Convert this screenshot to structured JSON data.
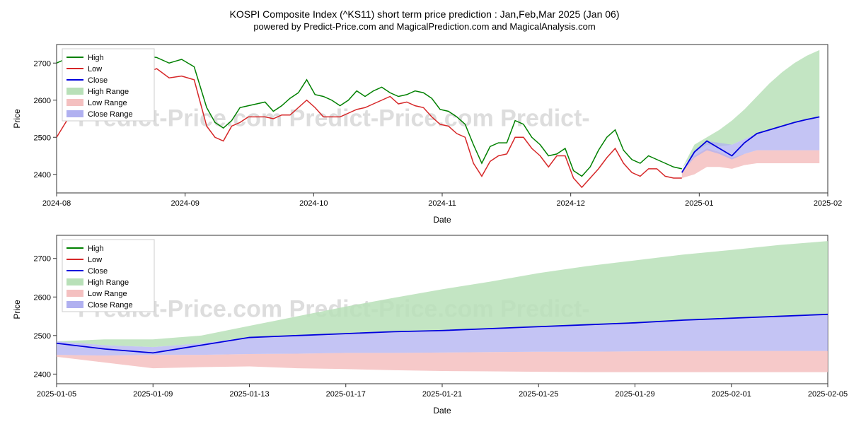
{
  "title": "KOSPI Composite Index (^KS11) short term price prediction : Jan,Feb,Mar 2025 (Jan 06)",
  "subtitle": "powered by Predict-Price.com and MagicalPrediction.com and MagicalAnalysis.com",
  "watermark_text": "Predict-Price.com   Predict-Price.com   Predict-",
  "watermark_color": "#dddddd",
  "legend": {
    "items": [
      {
        "label": "High",
        "type": "line",
        "color": "#008000"
      },
      {
        "label": "Low",
        "type": "line",
        "color": "#d62728"
      },
      {
        "label": "Close",
        "type": "line",
        "color": "#0000dd"
      },
      {
        "label": "High Range",
        "type": "area",
        "color": "#b8e0b8"
      },
      {
        "label": "Low Range",
        "type": "area",
        "color": "#f4c0c0"
      },
      {
        "label": "Close Range",
        "type": "area",
        "color": "#b0b0f0"
      }
    ]
  },
  "chart1": {
    "ylabel": "Price",
    "xlabel": "Date",
    "ylim": [
      2350,
      2750
    ],
    "ytick_step": 100,
    "yticks": [
      2400,
      2500,
      2600,
      2700
    ],
    "xticks": [
      "2024-08",
      "2024-09",
      "2024-10",
      "2024-11",
      "2024-12",
      "2025-01",
      "2025-02"
    ],
    "xlim": [
      0,
      185
    ],
    "background": "#ffffff",
    "grid_color": "#e0e0e0",
    "high_color": "#008000",
    "low_color": "#d62728",
    "close_color": "#0000dd",
    "high_range_color": "#b8e0b8",
    "low_range_color": "#f4c0c0",
    "close_range_color": "#b0b0f0",
    "high_series": [
      [
        0,
        2700
      ],
      [
        3,
        2715
      ],
      [
        6,
        2705
      ],
      [
        9,
        2700
      ],
      [
        12,
        2690
      ],
      [
        15,
        2695
      ],
      [
        18,
        2695
      ],
      [
        21,
        2720
      ],
      [
        24,
        2715
      ],
      [
        27,
        2700
      ],
      [
        30,
        2710
      ],
      [
        33,
        2690
      ],
      [
        36,
        2580
      ],
      [
        38,
        2540
      ],
      [
        40,
        2525
      ],
      [
        42,
        2545
      ],
      [
        44,
        2580
      ],
      [
        46,
        2585
      ],
      [
        48,
        2590
      ],
      [
        50,
        2595
      ],
      [
        52,
        2570
      ],
      [
        54,
        2585
      ],
      [
        56,
        2605
      ],
      [
        58,
        2620
      ],
      [
        60,
        2655
      ],
      [
        62,
        2615
      ],
      [
        64,
        2610
      ],
      [
        66,
        2600
      ],
      [
        68,
        2585
      ],
      [
        70,
        2600
      ],
      [
        72,
        2625
      ],
      [
        74,
        2610
      ],
      [
        76,
        2625
      ],
      [
        78,
        2635
      ],
      [
        80,
        2620
      ],
      [
        82,
        2610
      ],
      [
        84,
        2615
      ],
      [
        86,
        2625
      ],
      [
        88,
        2620
      ],
      [
        90,
        2605
      ],
      [
        92,
        2575
      ],
      [
        94,
        2570
      ],
      [
        96,
        2555
      ],
      [
        98,
        2535
      ],
      [
        100,
        2480
      ],
      [
        102,
        2430
      ],
      [
        104,
        2475
      ],
      [
        106,
        2485
      ],
      [
        108,
        2485
      ],
      [
        110,
        2545
      ],
      [
        112,
        2535
      ],
      [
        114,
        2500
      ],
      [
        116,
        2480
      ],
      [
        118,
        2450
      ],
      [
        120,
        2455
      ],
      [
        122,
        2470
      ],
      [
        124,
        2410
      ],
      [
        126,
        2395
      ],
      [
        128,
        2420
      ],
      [
        130,
        2465
      ],
      [
        132,
        2500
      ],
      [
        134,
        2520
      ],
      [
        136,
        2465
      ],
      [
        138,
        2440
      ],
      [
        140,
        2430
      ],
      [
        142,
        2450
      ],
      [
        144,
        2440
      ],
      [
        146,
        2430
      ],
      [
        148,
        2420
      ],
      [
        150,
        2415
      ]
    ],
    "low_series": [
      [
        0,
        2500
      ],
      [
        3,
        2555
      ],
      [
        6,
        2620
      ],
      [
        9,
        2640
      ],
      [
        12,
        2665
      ],
      [
        15,
        2670
      ],
      [
        18,
        2680
      ],
      [
        21,
        2670
      ],
      [
        24,
        2685
      ],
      [
        27,
        2660
      ],
      [
        30,
        2665
      ],
      [
        33,
        2655
      ],
      [
        36,
        2530
      ],
      [
        38,
        2500
      ],
      [
        40,
        2490
      ],
      [
        42,
        2530
      ],
      [
        44,
        2540
      ],
      [
        46,
        2555
      ],
      [
        48,
        2555
      ],
      [
        50,
        2555
      ],
      [
        52,
        2550
      ],
      [
        54,
        2560
      ],
      [
        56,
        2560
      ],
      [
        58,
        2580
      ],
      [
        60,
        2600
      ],
      [
        62,
        2580
      ],
      [
        64,
        2555
      ],
      [
        66,
        2555
      ],
      [
        68,
        2555
      ],
      [
        70,
        2565
      ],
      [
        72,
        2575
      ],
      [
        74,
        2580
      ],
      [
        76,
        2590
      ],
      [
        78,
        2600
      ],
      [
        80,
        2610
      ],
      [
        82,
        2590
      ],
      [
        84,
        2595
      ],
      [
        86,
        2585
      ],
      [
        88,
        2580
      ],
      [
        90,
        2555
      ],
      [
        92,
        2535
      ],
      [
        94,
        2530
      ],
      [
        96,
        2510
      ],
      [
        98,
        2500
      ],
      [
        100,
        2430
      ],
      [
        102,
        2395
      ],
      [
        104,
        2435
      ],
      [
        106,
        2450
      ],
      [
        108,
        2455
      ],
      [
        110,
        2500
      ],
      [
        112,
        2500
      ],
      [
        114,
        2470
      ],
      [
        116,
        2450
      ],
      [
        118,
        2420
      ],
      [
        120,
        2450
      ],
      [
        122,
        2450
      ],
      [
        124,
        2390
      ],
      [
        126,
        2365
      ],
      [
        128,
        2390
      ],
      [
        130,
        2415
      ],
      [
        132,
        2445
      ],
      [
        134,
        2470
      ],
      [
        136,
        2430
      ],
      [
        138,
        2405
      ],
      [
        140,
        2395
      ],
      [
        142,
        2415
      ],
      [
        144,
        2415
      ],
      [
        146,
        2395
      ],
      [
        148,
        2390
      ],
      [
        150,
        2390
      ]
    ],
    "close_series": [
      [
        150,
        2405
      ],
      [
        153,
        2460
      ],
      [
        156,
        2490
      ],
      [
        159,
        2470
      ],
      [
        162,
        2450
      ],
      [
        165,
        2485
      ],
      [
        168,
        2510
      ],
      [
        171,
        2520
      ],
      [
        174,
        2530
      ],
      [
        177,
        2540
      ],
      [
        180,
        2548
      ],
      [
        183,
        2555
      ]
    ],
    "high_range": [
      [
        150,
        2415,
        2415
      ],
      [
        153,
        2460,
        2480
      ],
      [
        156,
        2480,
        2500
      ],
      [
        159,
        2475,
        2520
      ],
      [
        162,
        2480,
        2545
      ],
      [
        165,
        2495,
        2575
      ],
      [
        168,
        2510,
        2610
      ],
      [
        171,
        2520,
        2645
      ],
      [
        174,
        2530,
        2675
      ],
      [
        177,
        2540,
        2700
      ],
      [
        180,
        2548,
        2720
      ],
      [
        183,
        2555,
        2735
      ]
    ],
    "close_range": [
      [
        150,
        2405,
        2405
      ],
      [
        153,
        2445,
        2465
      ],
      [
        156,
        2465,
        2490
      ],
      [
        159,
        2455,
        2485
      ],
      [
        162,
        2440,
        2480
      ],
      [
        165,
        2455,
        2495
      ],
      [
        168,
        2465,
        2510
      ],
      [
        171,
        2465,
        2520
      ],
      [
        174,
        2465,
        2530
      ],
      [
        177,
        2465,
        2540
      ],
      [
        180,
        2465,
        2548
      ],
      [
        183,
        2465,
        2555
      ]
    ],
    "low_range": [
      [
        150,
        2390,
        2405
      ],
      [
        153,
        2400,
        2450
      ],
      [
        156,
        2420,
        2470
      ],
      [
        159,
        2420,
        2460
      ],
      [
        162,
        2415,
        2445
      ],
      [
        165,
        2425,
        2455
      ],
      [
        168,
        2430,
        2465
      ],
      [
        171,
        2430,
        2465
      ],
      [
        174,
        2430,
        2465
      ],
      [
        177,
        2430,
        2465
      ],
      [
        180,
        2430,
        2465
      ],
      [
        183,
        2430,
        2465
      ]
    ]
  },
  "chart2": {
    "ylabel": "Price",
    "xlabel": "Date",
    "ylim": [
      2375,
      2760
    ],
    "yticks": [
      2400,
      2500,
      2600,
      2700
    ],
    "xticks": [
      "2025-01-05",
      "2025-01-09",
      "2025-01-13",
      "2025-01-17",
      "2025-01-21",
      "2025-01-25",
      "2025-01-29",
      "2025-02-01",
      "2025-02-05"
    ],
    "xlim": [
      0,
      32
    ],
    "background": "#ffffff",
    "grid_color": "#e0e0e0",
    "high_color": "#008000",
    "low_color": "#d62728",
    "close_color": "#0000dd",
    "high_range_color": "#b8e0b8",
    "low_range_color": "#f4c0c0",
    "close_range_color": "#b0b0f0",
    "close_series": [
      [
        0,
        2480
      ],
      [
        2,
        2465
      ],
      [
        4,
        2455
      ],
      [
        6,
        2475
      ],
      [
        8,
        2495
      ],
      [
        10,
        2500
      ],
      [
        12,
        2505
      ],
      [
        14,
        2510
      ],
      [
        16,
        2513
      ],
      [
        18,
        2518
      ],
      [
        20,
        2523
      ],
      [
        22,
        2528
      ],
      [
        24,
        2533
      ],
      [
        26,
        2540
      ],
      [
        28,
        2545
      ],
      [
        30,
        2550
      ],
      [
        32,
        2555
      ]
    ],
    "high_range": [
      [
        0,
        2485,
        2485
      ],
      [
        2,
        2475,
        2490
      ],
      [
        4,
        2470,
        2490
      ],
      [
        6,
        2480,
        2500
      ],
      [
        8,
        2495,
        2525
      ],
      [
        10,
        2500,
        2550
      ],
      [
        12,
        2505,
        2575
      ],
      [
        14,
        2510,
        2598
      ],
      [
        16,
        2513,
        2620
      ],
      [
        18,
        2518,
        2640
      ],
      [
        20,
        2523,
        2662
      ],
      [
        22,
        2528,
        2680
      ],
      [
        24,
        2533,
        2695
      ],
      [
        26,
        2540,
        2710
      ],
      [
        28,
        2545,
        2722
      ],
      [
        30,
        2550,
        2735
      ],
      [
        32,
        2555,
        2745
      ]
    ],
    "close_range": [
      [
        0,
        2450,
        2485
      ],
      [
        2,
        2448,
        2475
      ],
      [
        4,
        2450,
        2470
      ],
      [
        6,
        2450,
        2480
      ],
      [
        8,
        2452,
        2495
      ],
      [
        10,
        2453,
        2500
      ],
      [
        12,
        2455,
        2505
      ],
      [
        14,
        2455,
        2510
      ],
      [
        16,
        2456,
        2513
      ],
      [
        18,
        2457,
        2518
      ],
      [
        20,
        2458,
        2523
      ],
      [
        22,
        2458,
        2528
      ],
      [
        24,
        2459,
        2533
      ],
      [
        26,
        2460,
        2540
      ],
      [
        28,
        2460,
        2545
      ],
      [
        30,
        2460,
        2550
      ],
      [
        32,
        2460,
        2555
      ]
    ],
    "low_range": [
      [
        0,
        2445,
        2450
      ],
      [
        2,
        2430,
        2448
      ],
      [
        4,
        2415,
        2450
      ],
      [
        6,
        2418,
        2450
      ],
      [
        8,
        2420,
        2452
      ],
      [
        10,
        2415,
        2453
      ],
      [
        12,
        2413,
        2455
      ],
      [
        14,
        2410,
        2455
      ],
      [
        16,
        2408,
        2456
      ],
      [
        18,
        2407,
        2457
      ],
      [
        20,
        2406,
        2458
      ],
      [
        22,
        2405,
        2458
      ],
      [
        24,
        2405,
        2459
      ],
      [
        26,
        2405,
        2460
      ],
      [
        28,
        2405,
        2460
      ],
      [
        30,
        2405,
        2460
      ],
      [
        32,
        2405,
        2460
      ]
    ]
  }
}
